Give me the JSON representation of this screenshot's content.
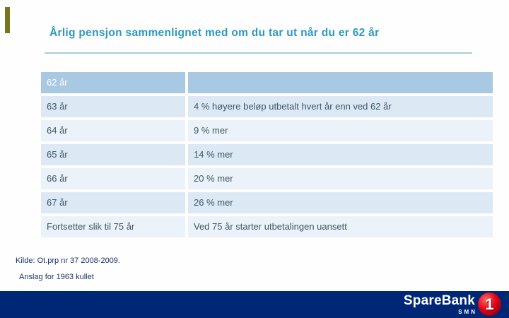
{
  "page": {
    "title": "Årlig pensjon sammenlignet med om du tar ut når du er 62 år"
  },
  "table": {
    "header": {
      "age": "62 år",
      "text": ""
    },
    "rows": [
      {
        "age": "63 år",
        "text": "4 % høyere beløp utbetalt hvert år enn ved 62 år"
      },
      {
        "age": "64 år",
        "text": "9 % mer"
      },
      {
        "age": "65 år",
        "text": "14 % mer"
      },
      {
        "age": "66 år",
        "text": "20 % mer"
      },
      {
        "age": "67 år",
        "text": "26 % mer"
      },
      {
        "age": "Fortsetter slik til 75 år",
        "text": "Ved 75 år starter utbetalingen uansett"
      }
    ]
  },
  "footnotes": {
    "source": "Kilde: Ot.prp nr 37 2008-2009.",
    "estimate": "Anslag for 1963 kullet"
  },
  "footer": {
    "brand": "SpareBank",
    "region": "SMN",
    "logo_digit": "1"
  },
  "colors": {
    "title_text": "#2b98c4",
    "header_row_bg": "#a9c9e3",
    "row_alt_dark": "#dce9f4",
    "row_alt_light": "#ebf2f9",
    "cell_text": "#3e5668",
    "footnote_text": "#17356b",
    "footer_bar_bg": "#002776",
    "logo_red": "#e2001a",
    "accent_olive": "#76761e"
  }
}
